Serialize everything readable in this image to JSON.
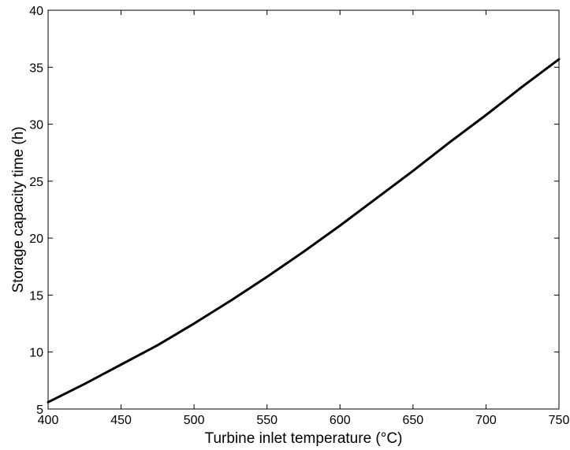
{
  "chart_data": {
    "type": "line",
    "title": "",
    "xlabel": "Turbine inlet temperature (°C)",
    "ylabel": "Storage capacity time (h)",
    "xlim": [
      400,
      750
    ],
    "ylim": [
      5,
      40
    ],
    "xticks": [
      400,
      450,
      500,
      550,
      600,
      650,
      700,
      750
    ],
    "yticks": [
      5,
      10,
      15,
      20,
      25,
      30,
      35,
      40
    ],
    "grid": false,
    "legend": "none",
    "series": [
      {
        "color": "#000000",
        "x": [
          400,
          425,
          450,
          475,
          500,
          525,
          550,
          575,
          600,
          625,
          650,
          675,
          700,
          725,
          750
        ],
        "y": [
          5.6,
          7.2,
          8.9,
          10.6,
          12.5,
          14.5,
          16.6,
          18.8,
          21.1,
          23.5,
          25.9,
          28.4,
          30.8,
          33.3,
          35.7
        ]
      }
    ]
  }
}
